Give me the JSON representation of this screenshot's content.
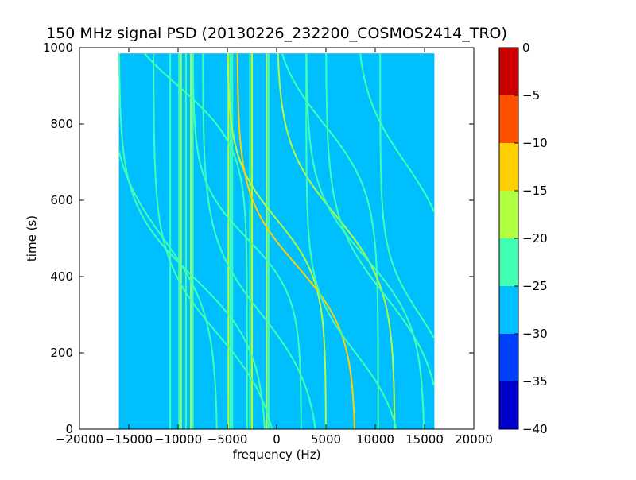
{
  "chart_data": {
    "type": "heatmap",
    "title": "150 MHz signal PSD (20130226_232200_COSMOS2414_TRO)",
    "xlabel": "frequency (Hz)",
    "ylabel": "time (s)",
    "xlim": [
      -20000,
      20000
    ],
    "ylim": [
      0,
      1000
    ],
    "x_ticks": [
      -20000,
      -15000,
      -10000,
      -5000,
      0,
      5000,
      10000,
      15000,
      20000
    ],
    "x_tick_labels": [
      "−20000",
      "−15000",
      "−10000",
      "−5000",
      "0",
      "5000",
      "10000",
      "15000",
      "20000"
    ],
    "y_ticks": [
      0,
      200,
      400,
      600,
      800,
      1000
    ],
    "y_tick_labels": [
      "0",
      "200",
      "400",
      "600",
      "800",
      "1000"
    ],
    "data_extent": {
      "x": [
        -16000,
        16000
      ],
      "y": [
        0,
        985
      ]
    },
    "background_level": -27.5,
    "colorbar": {
      "levels": [
        -40,
        -35,
        -30,
        -25,
        -20,
        -15,
        -10,
        -5,
        0
      ],
      "tick_labels": [
        "−40",
        "−35",
        "−30",
        "−25",
        "−20",
        "−15",
        "−10",
        "−5",
        "0"
      ],
      "colors": [
        "#0000cc",
        "#0040ff",
        "#00bfff",
        "#40ffb0",
        "#b0ff40",
        "#ffd000",
        "#ff5000",
        "#cc0000"
      ]
    },
    "vertical_lines": [
      {
        "f": -10800,
        "level": -22.5
      },
      {
        "f": -9900,
        "level": -22.5
      },
      {
        "f": -9700,
        "level": -17.5
      },
      {
        "f": -9200,
        "level": -22.5
      },
      {
        "f": -8700,
        "level": -17.5
      },
      {
        "f": -8500,
        "level": -22.5
      },
      {
        "f": -4900,
        "level": -17.5
      },
      {
        "f": -4700,
        "level": -22.5
      },
      {
        "f": -4500,
        "level": -22.5
      },
      {
        "f": -2700,
        "level": -22.5
      },
      {
        "f": -2500,
        "level": -17.5
      },
      {
        "f": -1000,
        "level": -17.5
      },
      {
        "f": -800,
        "level": -22.5
      }
    ],
    "tracks": [
      {
        "center": [
          -8500,
          400
        ],
        "amp": 7500,
        "w": 190,
        "trend": 0,
        "level": -22.5
      },
      {
        "center": [
          -6000,
          250
        ],
        "amp": 6500,
        "w": 200,
        "trend": 0,
        "level": -22.5
      },
      {
        "center": [
          -3000,
          500
        ],
        "amp": 5500,
        "w": 150,
        "trend": 0,
        "level": -22.5
      },
      {
        "center": [
          -1500,
          300
        ],
        "amp": 6000,
        "w": 200,
        "trend": 0,
        "level": -22.5
      },
      {
        "center": [
          0,
          550
        ],
        "amp": 5000,
        "w": 160,
        "trend": 0,
        "level": -17.5
      },
      {
        "center": [
          2000,
          430
        ],
        "amp": 6000,
        "w": 180,
        "trend": 0,
        "level": -12.5
      },
      {
        "center": [
          4800,
          800
        ],
        "amp": 5500,
        "w": 180,
        "trend": 0,
        "level": -22.5
      },
      {
        "center": [
          6000,
          560
        ],
        "amp": 6000,
        "w": 190,
        "trend": 0,
        "level": -17.5
      },
      {
        "center": [
          9000,
          450
        ],
        "amp": 6000,
        "w": 180,
        "trend": 0,
        "level": -22.5
      },
      {
        "center": [
          11000,
          350
        ],
        "amp": 6000,
        "w": 200,
        "trend": 0,
        "level": -22.5
      },
      {
        "center": [
          13000,
          700
        ],
        "amp": 5000,
        "w": 190,
        "trend": 0,
        "level": -22.5
      },
      {
        "center": [
          -10000,
          900
        ],
        "amp": 7000,
        "w": 160,
        "trend": 0,
        "level": -22.5
      },
      {
        "center": [
          -11500,
          500
        ],
        "amp": 5500,
        "w": 200,
        "trend": 0,
        "level": -22.5
      },
      {
        "center": [
          8000,
          200
        ],
        "amp": 5000,
        "w": 170,
        "trend": 0,
        "level": -22.5
      },
      {
        "center": [
          14500,
          300
        ],
        "amp": 4000,
        "w": 160,
        "trend": 0,
        "level": -22.5
      }
    ]
  }
}
